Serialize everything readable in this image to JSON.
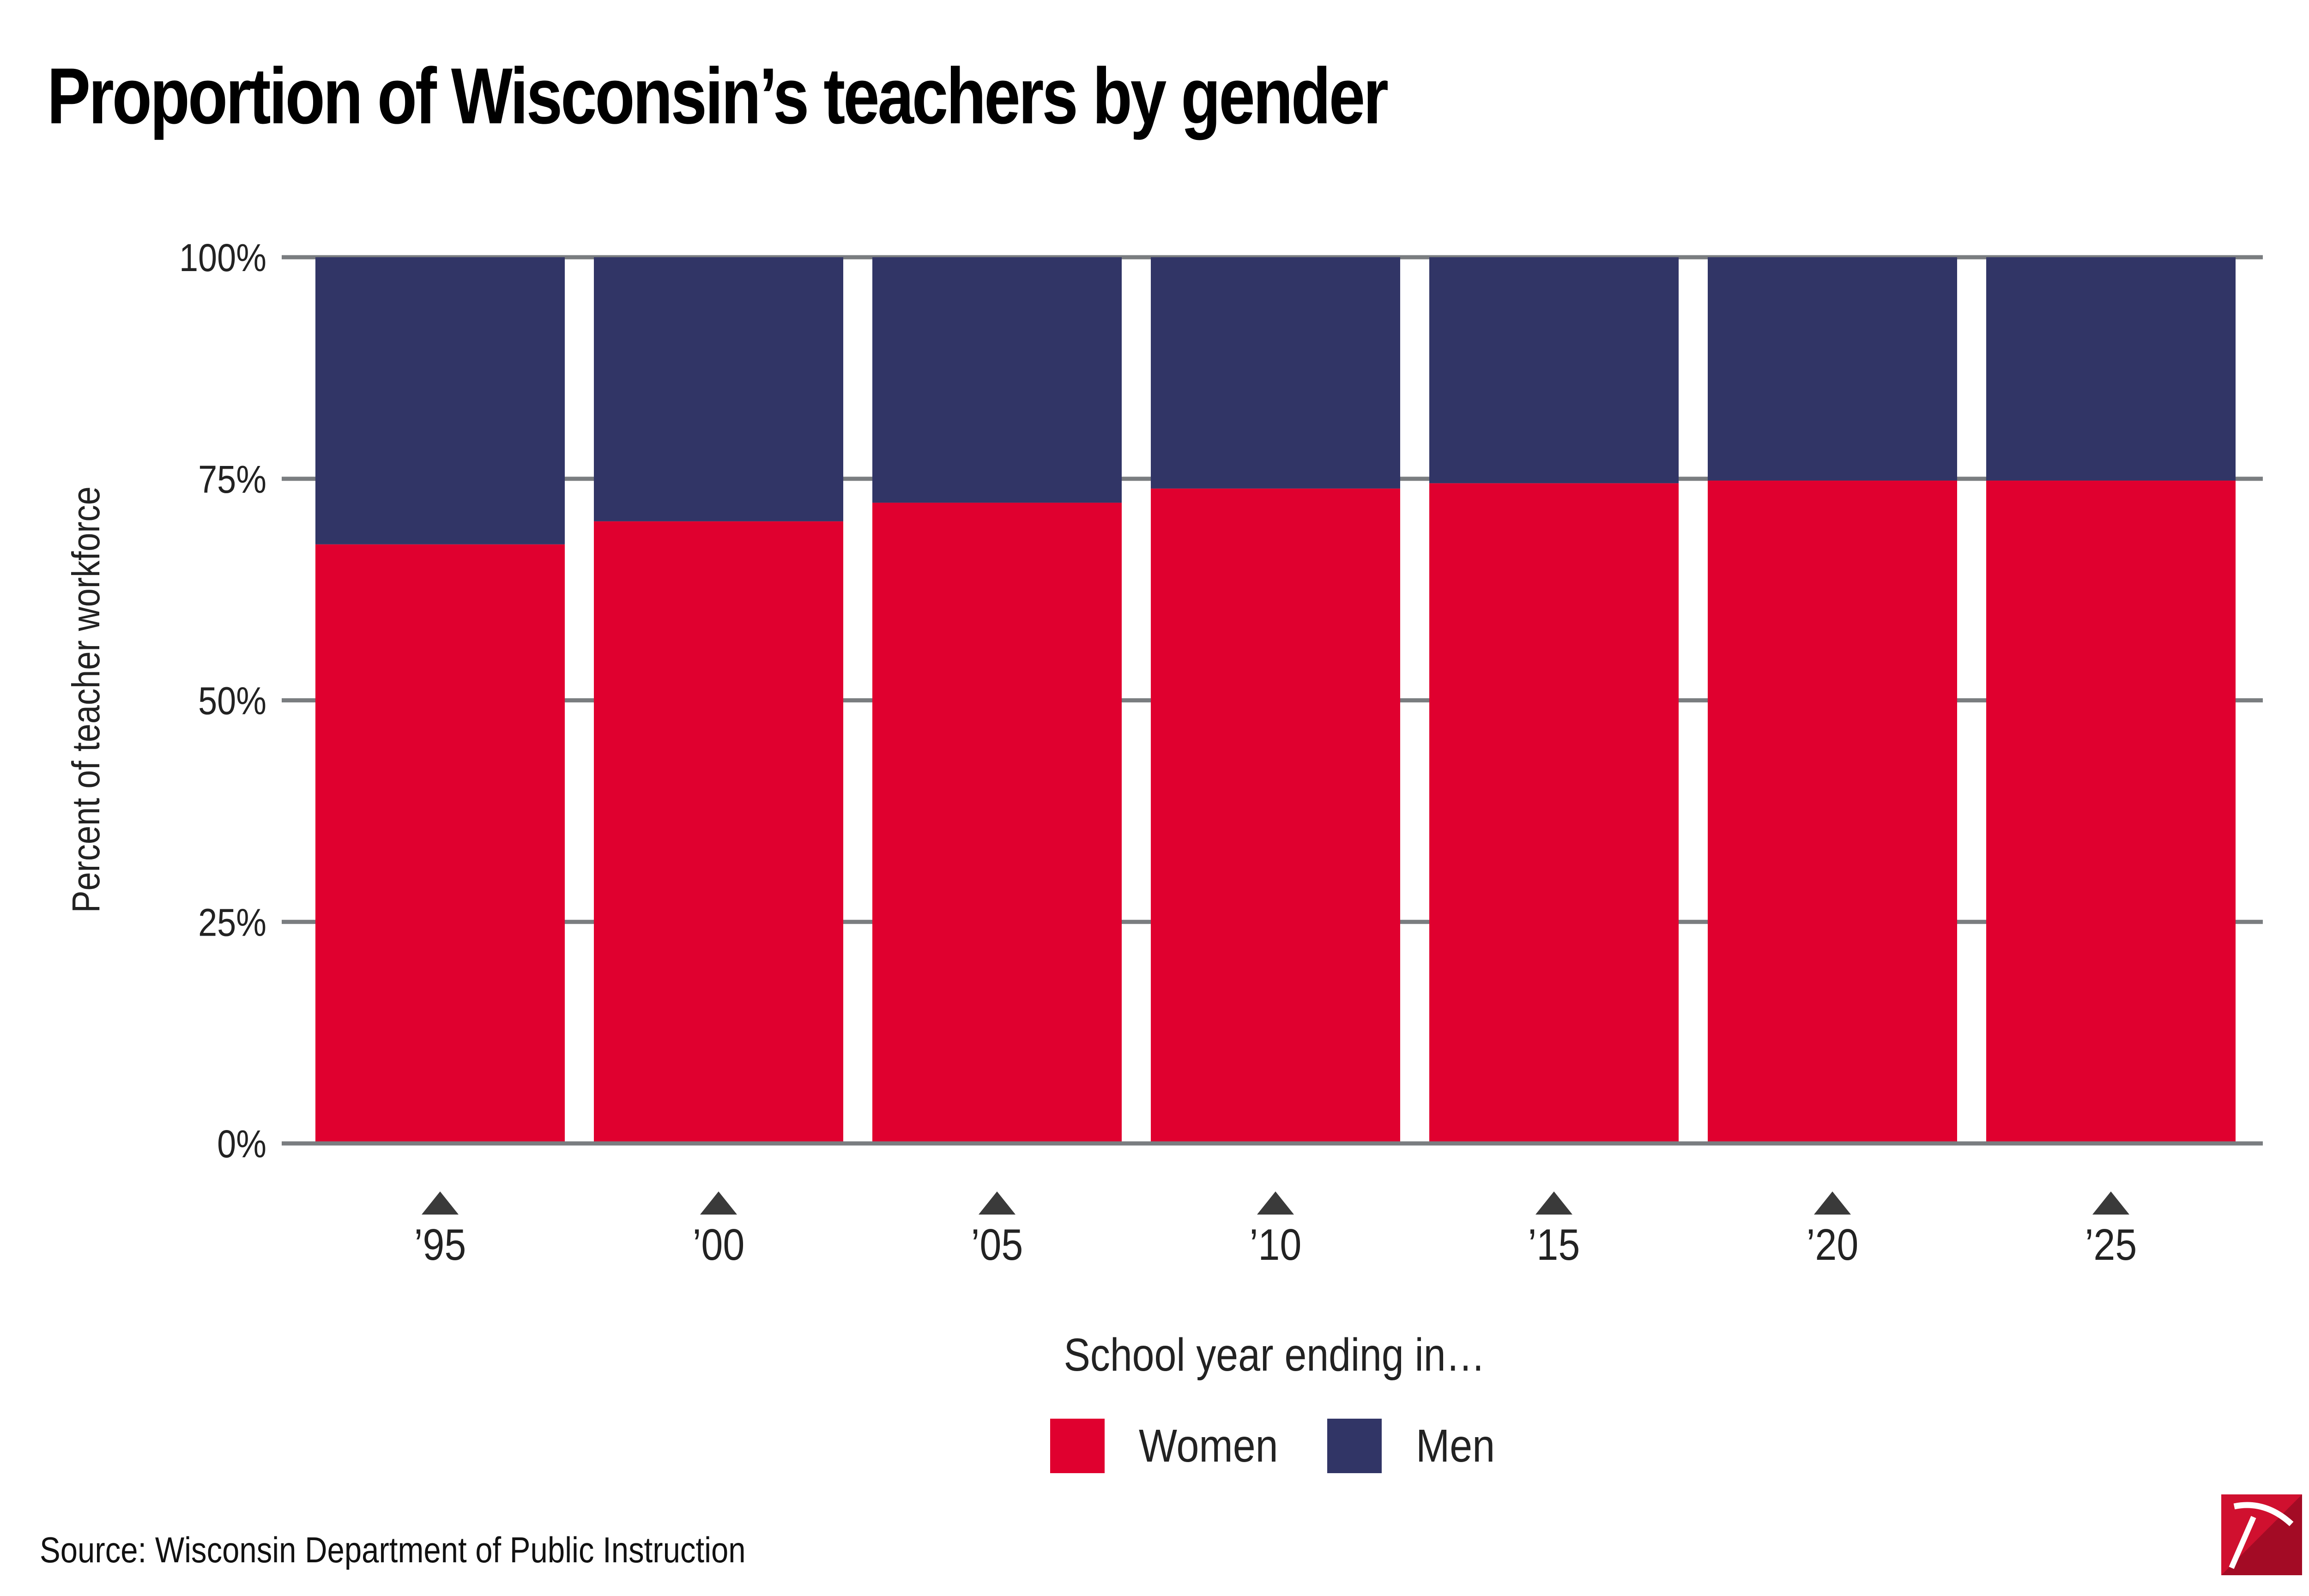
{
  "title": "Proportion of Wisconsin’s teachers by gender",
  "source": "Source: Wisconsin Department of Public Instruction",
  "colors": {
    "women": "#e0002f",
    "men": "#313566",
    "gridline": "#7a7d80",
    "marker": "#3a3a3a",
    "logo": "#d0102f"
  },
  "legend": {
    "placement": "bottom-center",
    "items": [
      {
        "label": "Women",
        "series": "women"
      },
      {
        "label": "Men",
        "series": "men"
      }
    ]
  },
  "logo": {
    "icon": "pickaxe-logo-icon"
  },
  "chart_data": {
    "type": "bar",
    "stacked": true,
    "xlabel": "School year ending in…",
    "ylabel": "Percent of teacher workforce",
    "ylim": [
      0,
      100
    ],
    "yticks": [
      0,
      25,
      50,
      75,
      100
    ],
    "ytick_labels": [
      "0%",
      "25%",
      "50%",
      "75%",
      "100%"
    ],
    "categories": [
      "’95",
      "’00",
      "’05",
      "’10",
      "’15",
      "’20",
      "’25"
    ],
    "series": [
      {
        "name": "Women",
        "key": "women",
        "values": [
          67.6,
          70.2,
          72.3,
          73.9,
          74.5,
          74.8,
          74.8
        ]
      },
      {
        "name": "Men",
        "key": "men",
        "values": [
          32.4,
          29.8,
          27.7,
          26.1,
          25.5,
          25.2,
          25.2
        ]
      }
    ],
    "grid": true,
    "legend_position": "bottom"
  }
}
